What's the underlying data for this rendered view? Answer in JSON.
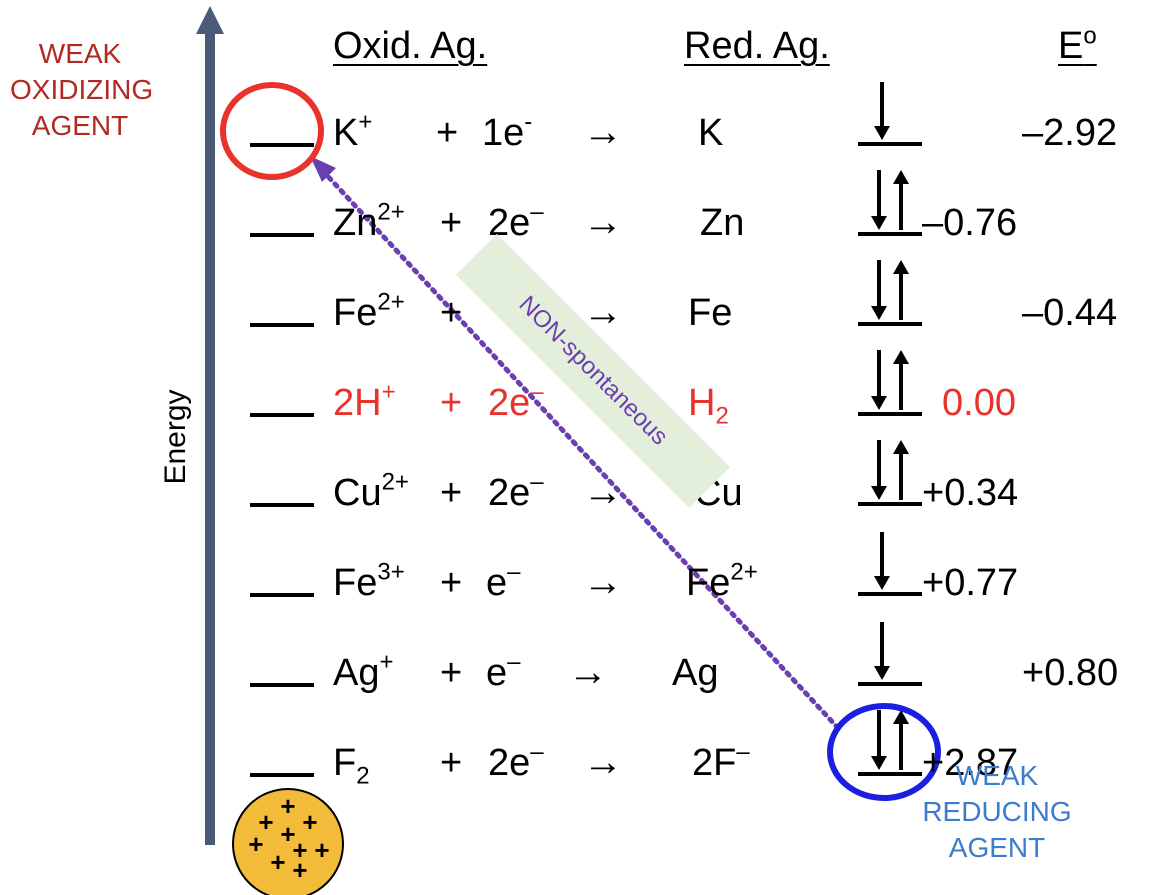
{
  "headers": {
    "oxid": "Oxid. Ag.",
    "red": "Red. Ag.",
    "e_base": "E",
    "e_sup": "o"
  },
  "left_label": {
    "line1": "WEAK",
    "line2": "OXIDIZING",
    "line3": "AGENT",
    "color": "#b02a22"
  },
  "right_label": {
    "line1": "WEAK",
    "line2": "REDUCING",
    "line3": "AGENT",
    "color": "#3b7ccc"
  },
  "axis_label": "Energy",
  "banner_text": "NON-spontaneous",
  "arrow_symbol": "→",
  "rows": [
    {
      "ox": "K",
      "ox_sup": "+",
      "ox_sub": "",
      "plus": "+",
      "e_coef": "1e",
      "e_sup": "-",
      "red": "K",
      "red_sup": "",
      "red_sub": "",
      "value": "–2.92",
      "highlight": false,
      "electrons": "down"
    },
    {
      "ox": "Zn",
      "ox_sup": "2+",
      "ox_sub": "",
      "plus": "+",
      "e_coef": "2e",
      "e_sup": "–",
      "red": "Zn",
      "red_sup": "",
      "red_sub": "",
      "value": "–0.76",
      "highlight": false,
      "electrons": "pair"
    },
    {
      "ox": "Fe",
      "ox_sup": "2+",
      "ox_sub": "",
      "plus": "+",
      "e_coef": "",
      "e_sup": "",
      "red": "Fe",
      "red_sup": "",
      "red_sub": "",
      "value": "–0.44",
      "highlight": false,
      "electrons": "pair"
    },
    {
      "ox": "2H",
      "ox_sup": "+",
      "ox_sub": "",
      "plus": "+",
      "e_coef": "2e",
      "e_sup": "–",
      "red": "H",
      "red_sup": "",
      "red_sub": "2",
      "value": "0.00",
      "highlight": true,
      "electrons": "pair"
    },
    {
      "ox": "Cu",
      "ox_sup": "2+",
      "ox_sub": "",
      "plus": "+",
      "e_coef": "2e",
      "e_sup": "–",
      "red": "Cu",
      "red_sup": "",
      "red_sub": "",
      "value": "+0.34",
      "highlight": false,
      "electrons": "pair"
    },
    {
      "ox": "Fe",
      "ox_sup": "3+",
      "ox_sub": "",
      "plus": "+",
      "e_coef": "e",
      "e_sup": "–",
      "red": "Fe",
      "red_sup": "2+",
      "red_sub": "",
      "value": "+0.77",
      "highlight": false,
      "electrons": "down"
    },
    {
      "ox": "Ag",
      "ox_sup": "+",
      "ox_sub": "",
      "plus": "+",
      "e_coef": "e",
      "e_sup": "–",
      "red": "Ag",
      "red_sup": "",
      "red_sub": "",
      "value": "+0.80",
      "highlight": false,
      "electrons": "down"
    },
    {
      "ox": "F",
      "ox_sup": "",
      "ox_sub": "2",
      "plus": "+",
      "e_coef": "2e",
      "e_sup": "–",
      "red": "2F",
      "red_sup": "–",
      "red_sub": "",
      "value": "+2.87",
      "highlight": false,
      "electrons": "pair"
    }
  ],
  "nucleus_symbol": "+",
  "colors": {
    "axis": "#4a5a78",
    "highlight_red": "#e8322b",
    "left_circle": "#e8322b",
    "right_circle": "#1c1fe0",
    "dotted_arrow": "#6a3fb0",
    "banner_bg": "#e3efdb",
    "nucleus_fill": "#f2bb3a"
  }
}
